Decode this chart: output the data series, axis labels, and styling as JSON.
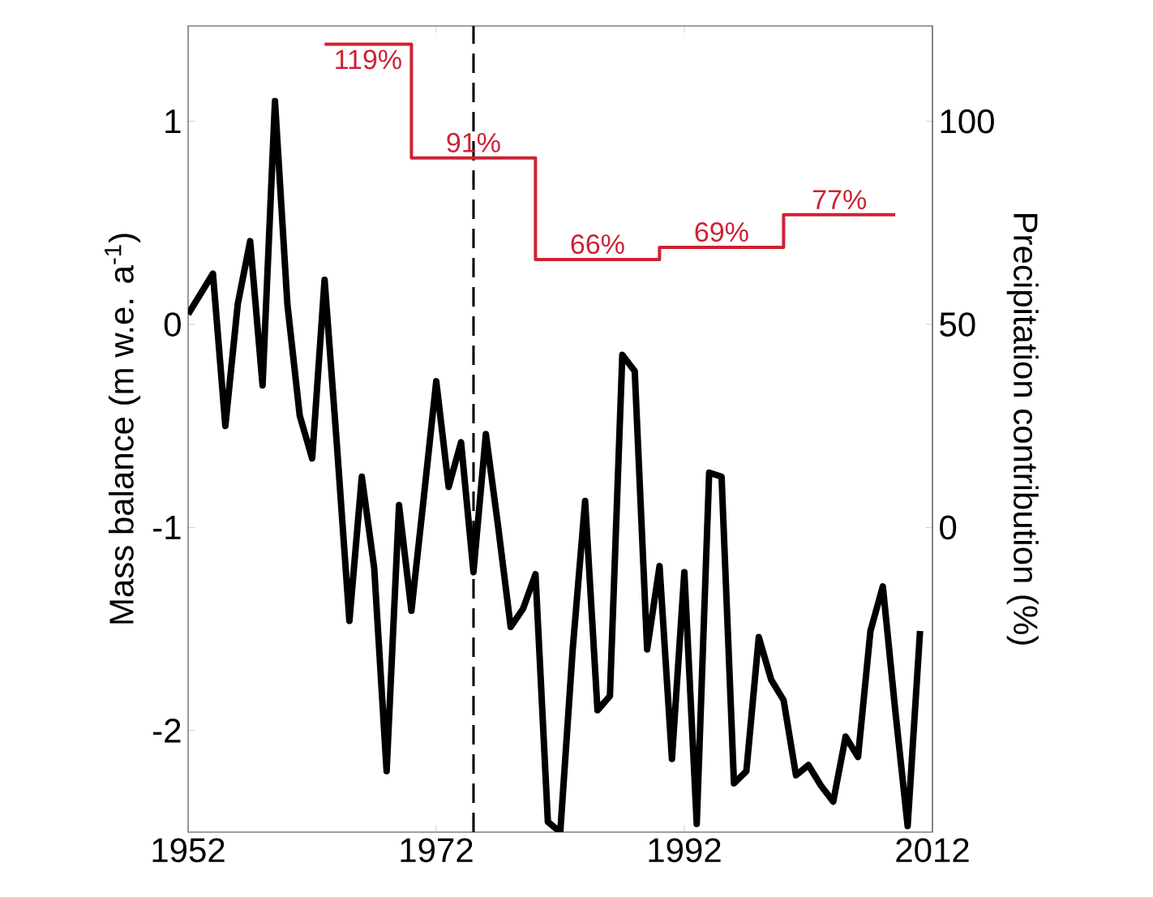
{
  "chart_data": {
    "type": "line",
    "xlabel": null,
    "ylabel": "Mass balance (m w.e. a$^{-1}$)",
    "y2label": "Precipitation contribution (%)",
    "xlim": [
      1952,
      2012
    ],
    "xticks": [
      1952,
      1972,
      1992,
      2012
    ],
    "ylim": [
      -2.5,
      1.47
    ],
    "yticks": [
      -2,
      -1,
      0,
      1
    ],
    "y2lim": [
      -75,
      123.5
    ],
    "y2ticks": [
      0,
      50,
      100
    ],
    "series": [
      {
        "color": "#000000",
        "x": [
          1952,
          1953,
          1954,
          1955,
          1956,
          1957,
          1958,
          1959,
          1960,
          1961,
          1962,
          1963,
          1964,
          1965,
          1966,
          1967,
          1968,
          1969,
          1970,
          1971,
          1972,
          1973,
          1974,
          1975,
          1976,
          1977,
          1978,
          1979,
          1980,
          1981,
          1982,
          1983,
          1984,
          1985,
          1986,
          1987,
          1988,
          1989,
          1990,
          1991,
          1992,
          1993,
          1994,
          1995,
          1996,
          1997,
          1998,
          1999,
          2000,
          2001,
          2002,
          2003,
          2004,
          2005,
          2006,
          2007,
          2008,
          2009,
          2010,
          2011
        ],
        "values": [
          0.05,
          0.15,
          0.25,
          -0.5,
          0.1,
          0.41,
          -0.3,
          1.1,
          0.1,
          -0.45,
          -0.66,
          0.22,
          -0.6,
          -1.46,
          -0.75,
          -1.2,
          -2.2,
          -0.89,
          -1.41,
          -0.85,
          -0.28,
          -0.8,
          -0.58,
          -1.22,
          -0.54,
          -1.0,
          -1.49,
          -1.4,
          -1.23,
          -2.45,
          -2.5,
          -1.6,
          -0.87,
          -1.9,
          -1.83,
          -0.15,
          -0.23,
          -1.6,
          -1.19,
          -2.14,
          -1.22,
          -2.46,
          -0.73,
          -0.75,
          -2.26,
          -2.2,
          -1.54,
          -1.75,
          -1.85,
          -2.22,
          -2.17,
          -2.27,
          -2.35,
          -2.03,
          -2.13,
          -1.51,
          -1.29,
          -1.9,
          -2.47,
          -1.51
        ]
      },
      {
        "type": "step",
        "axis": "y2",
        "color": "#cc2233",
        "x": [
          1963,
          1970,
          1980,
          1990,
          2000,
          2009
        ],
        "values": [
          119,
          91,
          66,
          69,
          77,
          77
        ],
        "value_labels": [
          "119%",
          "91%",
          "66%",
          "69%",
          "77%",
          null
        ]
      }
    ],
    "ref_lines": [
      {
        "axis": "x",
        "value": 1975,
        "color": "#000000",
        "line_style": "dashed"
      }
    ]
  }
}
